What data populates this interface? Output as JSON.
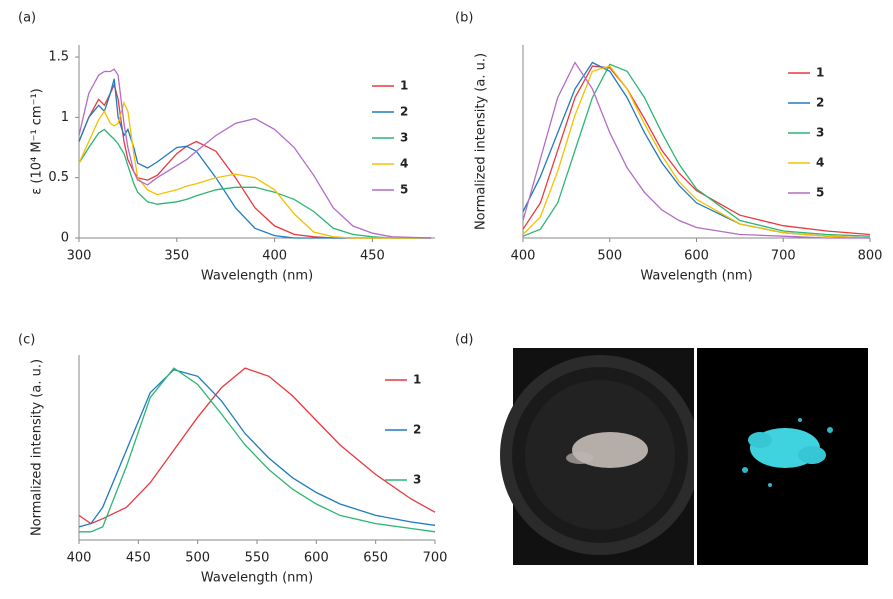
{
  "chart_data": [
    {
      "type": "line",
      "panel_label": "(a)",
      "x_label": "Wavelength (nm)",
      "y_label": "ε (10⁴ M⁻¹ cm⁻¹)",
      "xlim": [
        300,
        482
      ],
      "xticks": [
        300,
        350,
        400,
        450
      ],
      "ylim": [
        0,
        1.6
      ],
      "yticks": [
        0,
        0.5,
        1,
        1.5
      ],
      "x": [
        300,
        305,
        310,
        313,
        316,
        318,
        320,
        323,
        325,
        328,
        330,
        335,
        340,
        350,
        355,
        360,
        370,
        380,
        390,
        400,
        410,
        420,
        430,
        440,
        450,
        460,
        480
      ],
      "series": [
        {
          "name": "1",
          "color": "#e8393f",
          "values": [
            0.8,
            1.0,
            1.15,
            1.1,
            1.2,
            1.27,
            1.15,
            0.8,
            0.65,
            0.55,
            0.5,
            0.48,
            0.52,
            0.7,
            0.76,
            0.8,
            0.72,
            0.5,
            0.25,
            0.1,
            0.03,
            0.01,
            0,
            0,
            0,
            0,
            0
          ]
        },
        {
          "name": "2",
          "color": "#1f7bbf",
          "values": [
            0.8,
            1.0,
            1.1,
            1.05,
            1.2,
            1.32,
            1.0,
            0.85,
            0.9,
            0.75,
            0.62,
            0.58,
            0.63,
            0.75,
            0.76,
            0.72,
            0.5,
            0.25,
            0.08,
            0.02,
            0,
            0,
            0,
            0,
            0,
            0,
            0
          ]
        },
        {
          "name": "3",
          "color": "#2bb673",
          "values": [
            0.62,
            0.75,
            0.87,
            0.9,
            0.85,
            0.82,
            0.78,
            0.7,
            0.6,
            0.45,
            0.38,
            0.3,
            0.28,
            0.3,
            0.32,
            0.35,
            0.4,
            0.42,
            0.42,
            0.38,
            0.32,
            0.22,
            0.08,
            0.03,
            0.01,
            0,
            0
          ]
        },
        {
          "name": "4",
          "color": "#f5c000",
          "values": [
            0.62,
            0.8,
            0.98,
            1.05,
            0.95,
            0.93,
            0.95,
            1.12,
            1.05,
            0.7,
            0.5,
            0.4,
            0.36,
            0.4,
            0.43,
            0.45,
            0.5,
            0.53,
            0.5,
            0.4,
            0.2,
            0.05,
            0.01,
            0,
            0,
            0,
            0
          ]
        },
        {
          "name": "5",
          "color": "#b36cc7",
          "values": [
            0.85,
            1.2,
            1.35,
            1.38,
            1.38,
            1.4,
            1.35,
            0.95,
            0.75,
            0.55,
            0.48,
            0.44,
            0.5,
            0.6,
            0.65,
            0.72,
            0.85,
            0.95,
            0.99,
            0.9,
            0.75,
            0.52,
            0.25,
            0.1,
            0.04,
            0.01,
            0
          ]
        }
      ]
    },
    {
      "type": "line",
      "panel_label": "(b)",
      "x_label": "Wavelength (nm)",
      "y_label": "Normalized intensity (a. u.)",
      "xlim": [
        400,
        800
      ],
      "xticks": [
        400,
        500,
        600,
        700,
        800
      ],
      "ylim": [
        0,
        1.1
      ],
      "x": [
        400,
        420,
        440,
        460,
        480,
        500,
        520,
        540,
        560,
        580,
        600,
        650,
        700,
        750,
        800
      ],
      "series": [
        {
          "name": "1",
          "color": "#e8393f",
          "values": [
            0.05,
            0.2,
            0.5,
            0.8,
            0.98,
            0.97,
            0.85,
            0.68,
            0.5,
            0.37,
            0.27,
            0.13,
            0.07,
            0.04,
            0.02
          ]
        },
        {
          "name": "2",
          "color": "#1f7bbf",
          "values": [
            0.15,
            0.35,
            0.6,
            0.85,
            1.0,
            0.95,
            0.8,
            0.6,
            0.43,
            0.3,
            0.2,
            0.08,
            0.03,
            0.01,
            0
          ]
        },
        {
          "name": "3",
          "color": "#2bb673",
          "values": [
            0.01,
            0.05,
            0.2,
            0.5,
            0.8,
            0.99,
            0.95,
            0.8,
            0.6,
            0.42,
            0.28,
            0.1,
            0.04,
            0.02,
            0.01
          ]
        },
        {
          "name": "4",
          "color": "#f5c000",
          "values": [
            0.02,
            0.12,
            0.38,
            0.7,
            0.95,
            0.98,
            0.85,
            0.65,
            0.47,
            0.32,
            0.22,
            0.08,
            0.03,
            0.01,
            0
          ]
        },
        {
          "name": "5",
          "color": "#b36cc7",
          "values": [
            0.1,
            0.45,
            0.8,
            1.0,
            0.85,
            0.6,
            0.4,
            0.26,
            0.16,
            0.1,
            0.06,
            0.02,
            0.01,
            0,
            0
          ]
        }
      ]
    },
    {
      "type": "line",
      "panel_label": "(c)",
      "x_label": "Wavelength (nm)",
      "y_label": "Normalized intensity (a. u.)",
      "xlim": [
        400,
        700
      ],
      "xticks": [
        400,
        450,
        500,
        550,
        600,
        650,
        700
      ],
      "ylim": [
        -0.05,
        1.08
      ],
      "x": [
        400,
        410,
        420,
        440,
        460,
        480,
        500,
        520,
        540,
        560,
        580,
        600,
        620,
        650,
        680,
        700
      ],
      "series": [
        {
          "name": "1",
          "color": "#e8393f",
          "values": [
            0.1,
            0.05,
            0.08,
            0.15,
            0.3,
            0.5,
            0.7,
            0.88,
            1.0,
            0.95,
            0.83,
            0.68,
            0.53,
            0.35,
            0.2,
            0.12
          ]
        },
        {
          "name": "2",
          "color": "#1f7bbf",
          "values": [
            0.03,
            0.05,
            0.15,
            0.5,
            0.85,
            0.99,
            0.95,
            0.8,
            0.6,
            0.45,
            0.33,
            0.24,
            0.17,
            0.1,
            0.06,
            0.04
          ]
        },
        {
          "name": "3",
          "color": "#2bb673",
          "values": [
            0,
            0,
            0.03,
            0.4,
            0.82,
            1.0,
            0.9,
            0.72,
            0.53,
            0.38,
            0.26,
            0.17,
            0.1,
            0.05,
            0.02,
            0
          ]
        }
      ]
    },
    {
      "type": "image",
      "panel_label": "(d)"
    }
  ]
}
